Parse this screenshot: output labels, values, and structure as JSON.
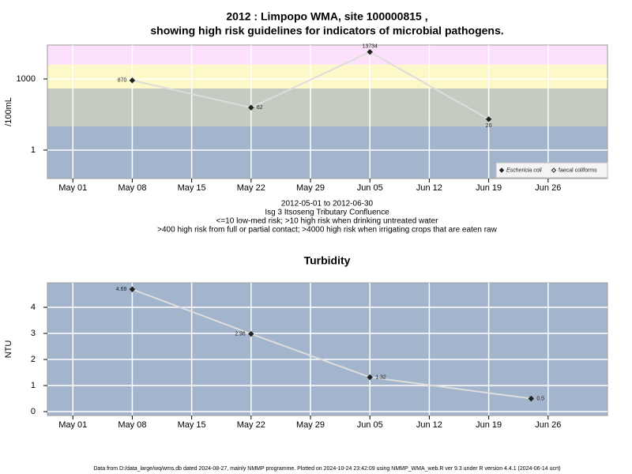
{
  "chart_data": [
    {
      "type": "line",
      "title": [
        "2012 : Limpopo WMA, site 100000815 ,",
        "showing high risk guidelines for indicators of microbial pathogens."
      ],
      "subtitle": [
        "2012-05-01 to 2012-06-30",
        "Isg 3 Itsoseng Tributary Confluence",
        "<=10 low-med risk; >10 high risk when drinking untreated water",
        ">400 high risk from full or partial contact; >4000 high risk when irrigating crops that are eaten raw"
      ],
      "ylabel": "/100mL",
      "log_y": true,
      "x": [
        "2012-05-08",
        "2012-05-22",
        "2012-06-05",
        "2012-06-19"
      ],
      "series": [
        {
          "name": "Eschericia coli",
          "color": "#222222",
          "line_color": "#dddddd",
          "marker": "filled",
          "values": [
            870,
            62,
            13734,
            20
          ]
        },
        {
          "name": "faecal coliforms",
          "color": "#222222",
          "marker": "open",
          "values": [
            null,
            null,
            null,
            null
          ]
        }
      ],
      "band_edges": [
        10,
        400,
        4000
      ],
      "band_colors": [
        "#a2b5cd",
        "#c5cbc0",
        "#fcf8c8",
        "#fde0fb"
      ],
      "xlim": [
        "2012-04-28",
        "2012-07-03"
      ],
      "xticks": [
        {
          "value": "2012-05-01",
          "label": "May 01"
        },
        {
          "value": "2012-05-08",
          "label": "May 08"
        },
        {
          "value": "2012-05-15",
          "label": "May 15"
        },
        {
          "value": "2012-05-22",
          "label": "May 22"
        },
        {
          "value": "2012-05-29",
          "label": "May 29"
        },
        {
          "value": "2012-06-05",
          "label": "Jun 05"
        },
        {
          "value": "2012-06-12",
          "label": "Jun 12"
        },
        {
          "value": "2012-06-19",
          "label": "Jun 19"
        },
        {
          "value": "2012-06-26",
          "label": "Jun 26"
        }
      ],
      "ylim": [
        0.063,
        27000
      ],
      "yticks": [
        1,
        1000
      ],
      "grid": true,
      "legend": "bottom-right"
    },
    {
      "type": "line",
      "title": [
        "Turbidity"
      ],
      "ylabel": "NTU",
      "log_y": false,
      "x": [
        "2012-05-08",
        "2012-05-22",
        "2012-06-05",
        "2012-06-24"
      ],
      "series": [
        {
          "color": "#222222",
          "line_color": "#dddddd",
          "marker": "filled",
          "values": [
            4.69,
            2.98,
            1.32,
            0.5
          ]
        }
      ],
      "background": "#a2b5cd",
      "xlim": [
        "2012-04-28",
        "2012-07-03"
      ],
      "xticks": [
        {
          "value": "2012-05-01",
          "label": "May 01"
        },
        {
          "value": "2012-05-08",
          "label": "May 08"
        },
        {
          "value": "2012-05-15",
          "label": "May 15"
        },
        {
          "value": "2012-05-22",
          "label": "May 22"
        },
        {
          "value": "2012-05-29",
          "label": "May 29"
        },
        {
          "value": "2012-06-05",
          "label": "Jun 05"
        },
        {
          "value": "2012-06-12",
          "label": "Jun 12"
        },
        {
          "value": "2012-06-19",
          "label": "Jun 19"
        },
        {
          "value": "2012-06-26",
          "label": "Jun 26"
        }
      ],
      "ylim": [
        -0.15,
        4.94
      ],
      "yticks": [
        0,
        1,
        2,
        3,
        4
      ],
      "grid": true
    }
  ],
  "footer": "Data from D:/data_large/wq/wms.db dated 2024-08-27, mainly NMMP programme. Plotted on 2024-10-24 23:42:09 using NMMP_WMA_web.R ver 9.3 under R version 4.4.1 (2024-06-14 ucrt)"
}
